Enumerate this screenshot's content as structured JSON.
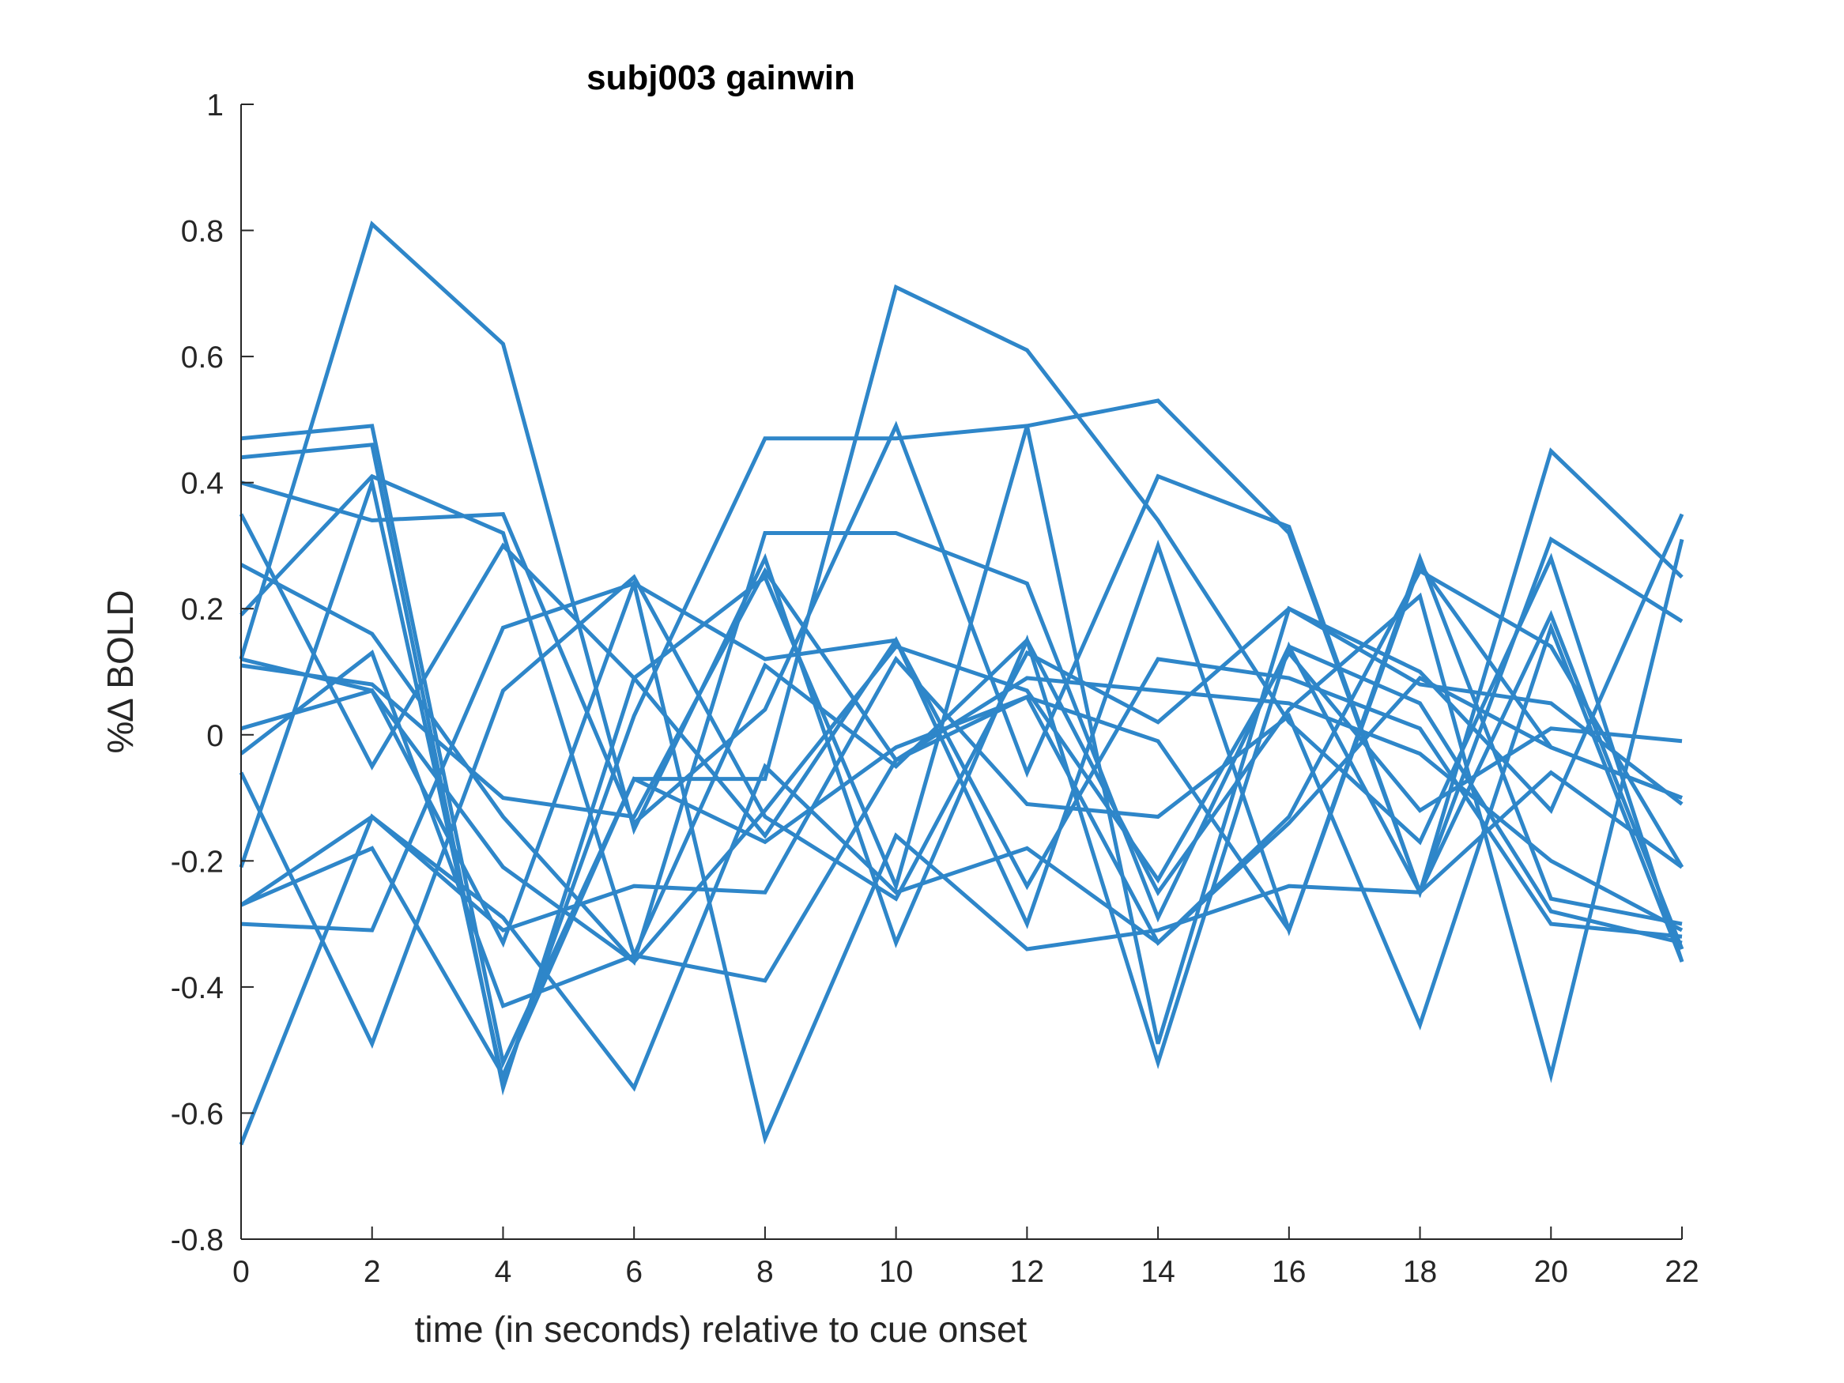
{
  "chart_data": {
    "type": "line",
    "title": "subj003 gainwin",
    "xlabel": "time (in seconds) relative to cue onset",
    "ylabel": "%∆ BOLD",
    "xlim": [
      0,
      22
    ],
    "ylim": [
      -0.8,
      1
    ],
    "xticks": [
      0,
      2,
      4,
      6,
      8,
      10,
      12,
      14,
      16,
      18,
      20,
      22
    ],
    "yticks": [
      -0.8,
      -0.6,
      -0.4,
      -0.2,
      0,
      0.2,
      0.4,
      0.6,
      0.8,
      1
    ],
    "xtick_labels": [
      "0",
      "2",
      "4",
      "6",
      "8",
      "10",
      "12",
      "14",
      "16",
      "18",
      "20",
      "22"
    ],
    "ytick_labels": [
      "-0.8",
      "-0.6",
      "-0.4",
      "-0.2",
      "0",
      "0.2",
      "0.4",
      "0.6",
      "0.8",
      "1"
    ],
    "grid": false,
    "line_color": "#2E86C9",
    "axis_color": "#262626",
    "x": [
      0,
      2,
      4,
      6,
      8,
      10,
      12,
      14,
      16,
      18,
      20,
      22
    ],
    "series": [
      {
        "values": [
          0.12,
          0.81,
          0.62,
          -0.15,
          0.28,
          -0.33,
          0.15,
          -0.52,
          0.14,
          -0.25,
          0.45,
          0.25
        ]
      },
      {
        "values": [
          -0.21,
          0.4,
          -0.55,
          0.03,
          0.47,
          0.47,
          0.49,
          0.53,
          0.32,
          -0.25,
          0.31,
          0.18
        ]
      },
      {
        "values": [
          0.47,
          0.49,
          -0.52,
          -0.07,
          -0.07,
          0.71,
          0.61,
          0.34,
          0.02,
          -0.17,
          0.28,
          -0.36
        ]
      },
      {
        "values": [
          0.44,
          0.46,
          -0.56,
          0.09,
          0.25,
          -0.24,
          0.49,
          -0.49,
          0.2,
          0.1,
          -0.12,
          0.35
        ]
      },
      {
        "values": [
          0.4,
          0.34,
          0.35,
          -0.14,
          0.04,
          0.49,
          -0.06,
          0.41,
          0.33,
          -0.25,
          0.19,
          -0.34
        ]
      },
      {
        "values": [
          0.35,
          -0.05,
          0.3,
          0.09,
          -0.16,
          0.15,
          -0.3,
          0.3,
          -0.31,
          0.28,
          -0.26,
          -0.3
        ]
      },
      {
        "values": [
          0.27,
          0.16,
          -0.13,
          -0.36,
          0.32,
          0.32,
          0.24,
          -0.29,
          0.14,
          0.05,
          -0.28,
          -0.33
        ]
      },
      {
        "values": [
          0.19,
          0.41,
          0.32,
          -0.35,
          0.11,
          -0.05,
          0.15,
          -0.25,
          0.04,
          0.22,
          -0.54,
          0.31
        ]
      },
      {
        "values": [
          0.12,
          0.07,
          -0.21,
          -0.36,
          -0.12,
          0.14,
          0.07,
          -0.23,
          0.13,
          -0.12,
          0.01,
          -0.01
        ]
      },
      {
        "values": [
          0.11,
          0.08,
          -0.1,
          -0.13,
          0.26,
          -0.04,
          0.09,
          0.07,
          0.05,
          -0.03,
          -0.2,
          -0.31
        ]
      },
      {
        "values": [
          0.01,
          0.07,
          -0.33,
          0.24,
          0.12,
          0.15,
          -0.24,
          0.12,
          0.09,
          0.01,
          -0.3,
          -0.32
        ]
      },
      {
        "values": [
          -0.03,
          0.13,
          -0.43,
          -0.35,
          -0.39,
          -0.04,
          0.06,
          -0.01,
          -0.31,
          0.27,
          -0.02,
          -0.1
        ]
      },
      {
        "values": [
          -0.06,
          -0.49,
          0.07,
          0.25,
          -0.13,
          -0.26,
          0.13,
          0.02,
          0.2,
          0.08,
          0.05,
          -0.11
        ]
      },
      {
        "values": [
          -0.27,
          -0.13,
          -0.29,
          -0.56,
          -0.05,
          -0.25,
          -0.18,
          -0.33,
          -0.13,
          0.26,
          0.14,
          -0.21
        ]
      },
      {
        "values": [
          -0.27,
          -0.18,
          -0.54,
          -0.07,
          -0.17,
          -0.02,
          0.06,
          -0.33,
          -0.14,
          0.09,
          -0.02,
          -0.1
        ]
      },
      {
        "values": [
          -0.3,
          -0.31,
          0.17,
          0.24,
          -0.64,
          -0.16,
          -0.34,
          -0.31,
          -0.24,
          -0.25,
          -0.06,
          -0.21
        ]
      },
      {
        "values": [
          -0.65,
          -0.13,
          -0.31,
          -0.24,
          -0.25,
          0.12,
          -0.11,
          -0.13,
          0.03,
          -0.46,
          0.17,
          -0.36
        ]
      }
    ]
  }
}
